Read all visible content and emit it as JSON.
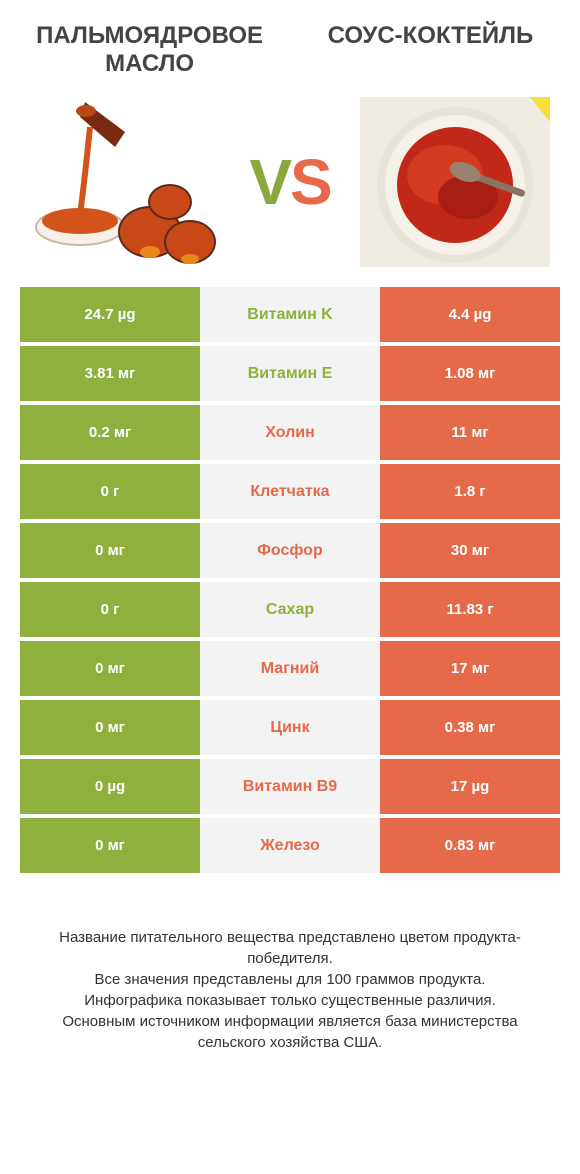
{
  "colors": {
    "green": "#8fb03f",
    "orange": "#e46a4a",
    "grey": "#f3f3f3"
  },
  "titles": {
    "left": "ПАЛЬМОЯДРОВОЕ МАСЛО",
    "right": "СОУС-КОКТЕЙЛЬ"
  },
  "vs": {
    "v": "V",
    "s": "S"
  },
  "rows": [
    {
      "left": "24.7 µg",
      "label": "Витамин K",
      "right": "4.4 µg",
      "winner": "left"
    },
    {
      "left": "3.81 мг",
      "label": "Витамин E",
      "right": "1.08 мг",
      "winner": "left"
    },
    {
      "left": "0.2 мг",
      "label": "Холин",
      "right": "11 мг",
      "winner": "right"
    },
    {
      "left": "0 г",
      "label": "Клетчатка",
      "right": "1.8 г",
      "winner": "right"
    },
    {
      "left": "0 мг",
      "label": "Фосфор",
      "right": "30 мг",
      "winner": "right"
    },
    {
      "left": "0 г",
      "label": "Сахар",
      "right": "11.83 г",
      "winner": "left"
    },
    {
      "left": "0 мг",
      "label": "Магний",
      "right": "17 мг",
      "winner": "right"
    },
    {
      "left": "0 мг",
      "label": "Цинк",
      "right": "0.38 мг",
      "winner": "right"
    },
    {
      "left": "0 µg",
      "label": "Витамин B9",
      "right": "17 µg",
      "winner": "right"
    },
    {
      "left": "0 мг",
      "label": "Железо",
      "right": "0.83 мг",
      "winner": "right"
    }
  ],
  "footer": {
    "l1": "Название питательного вещества представлено цветом продукта-победителя.",
    "l2": "Все значения представлены для 100 граммов продукта.",
    "l3": "Инфографика показывает только существенные различия.",
    "l4": "Основным источником информации является база министерства сельского хозяйства США."
  }
}
